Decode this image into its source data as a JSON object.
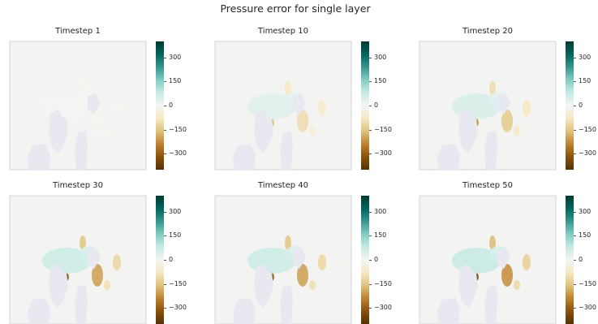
{
  "title": "Pressure error for single layer",
  "colors": {
    "cmap": [
      "#543005",
      "#8c510a",
      "#bf812d",
      "#dfc27d",
      "#f6e8c3",
      "#f5f5f5",
      "#c7eae5",
      "#80cdc1",
      "#35978f",
      "#01665e",
      "#003c30"
    ],
    "ocean": "#f3f3f1",
    "land": "#e8e8f0",
    "frame": "#d6d6dc"
  },
  "chart_data": [
    {
      "type": "heatmap",
      "title": "Timestep 1",
      "zlim": [
        -400,
        400
      ],
      "colorbar_ticks": [
        300,
        150,
        0,
        -150,
        -300
      ],
      "intensity": 0.05
    },
    {
      "type": "heatmap",
      "title": "Timestep 10",
      "zlim": [
        -400,
        400
      ],
      "colorbar_ticks": [
        300,
        150,
        0,
        -150,
        -300
      ],
      "intensity": 0.45
    },
    {
      "type": "heatmap",
      "title": "Timestep 20",
      "zlim": [
        -400,
        400
      ],
      "colorbar_ticks": [
        300,
        150,
        0,
        -150,
        -300
      ],
      "intensity": 0.6
    },
    {
      "type": "heatmap",
      "title": "Timestep 30",
      "zlim": [
        -400,
        400
      ],
      "colorbar_ticks": [
        300,
        150,
        0,
        -150,
        -300
      ],
      "intensity": 0.85
    },
    {
      "type": "heatmap",
      "title": "Timestep 40",
      "zlim": [
        -400,
        400
      ],
      "colorbar_ticks": [
        300,
        150,
        0,
        -150,
        -300
      ],
      "intensity": 0.85
    },
    {
      "type": "heatmap",
      "title": "Timestep 50",
      "zlim": [
        -400,
        400
      ],
      "colorbar_ticks": [
        300,
        150,
        0,
        -150,
        -300
      ],
      "intensity": 0.95
    }
  ]
}
